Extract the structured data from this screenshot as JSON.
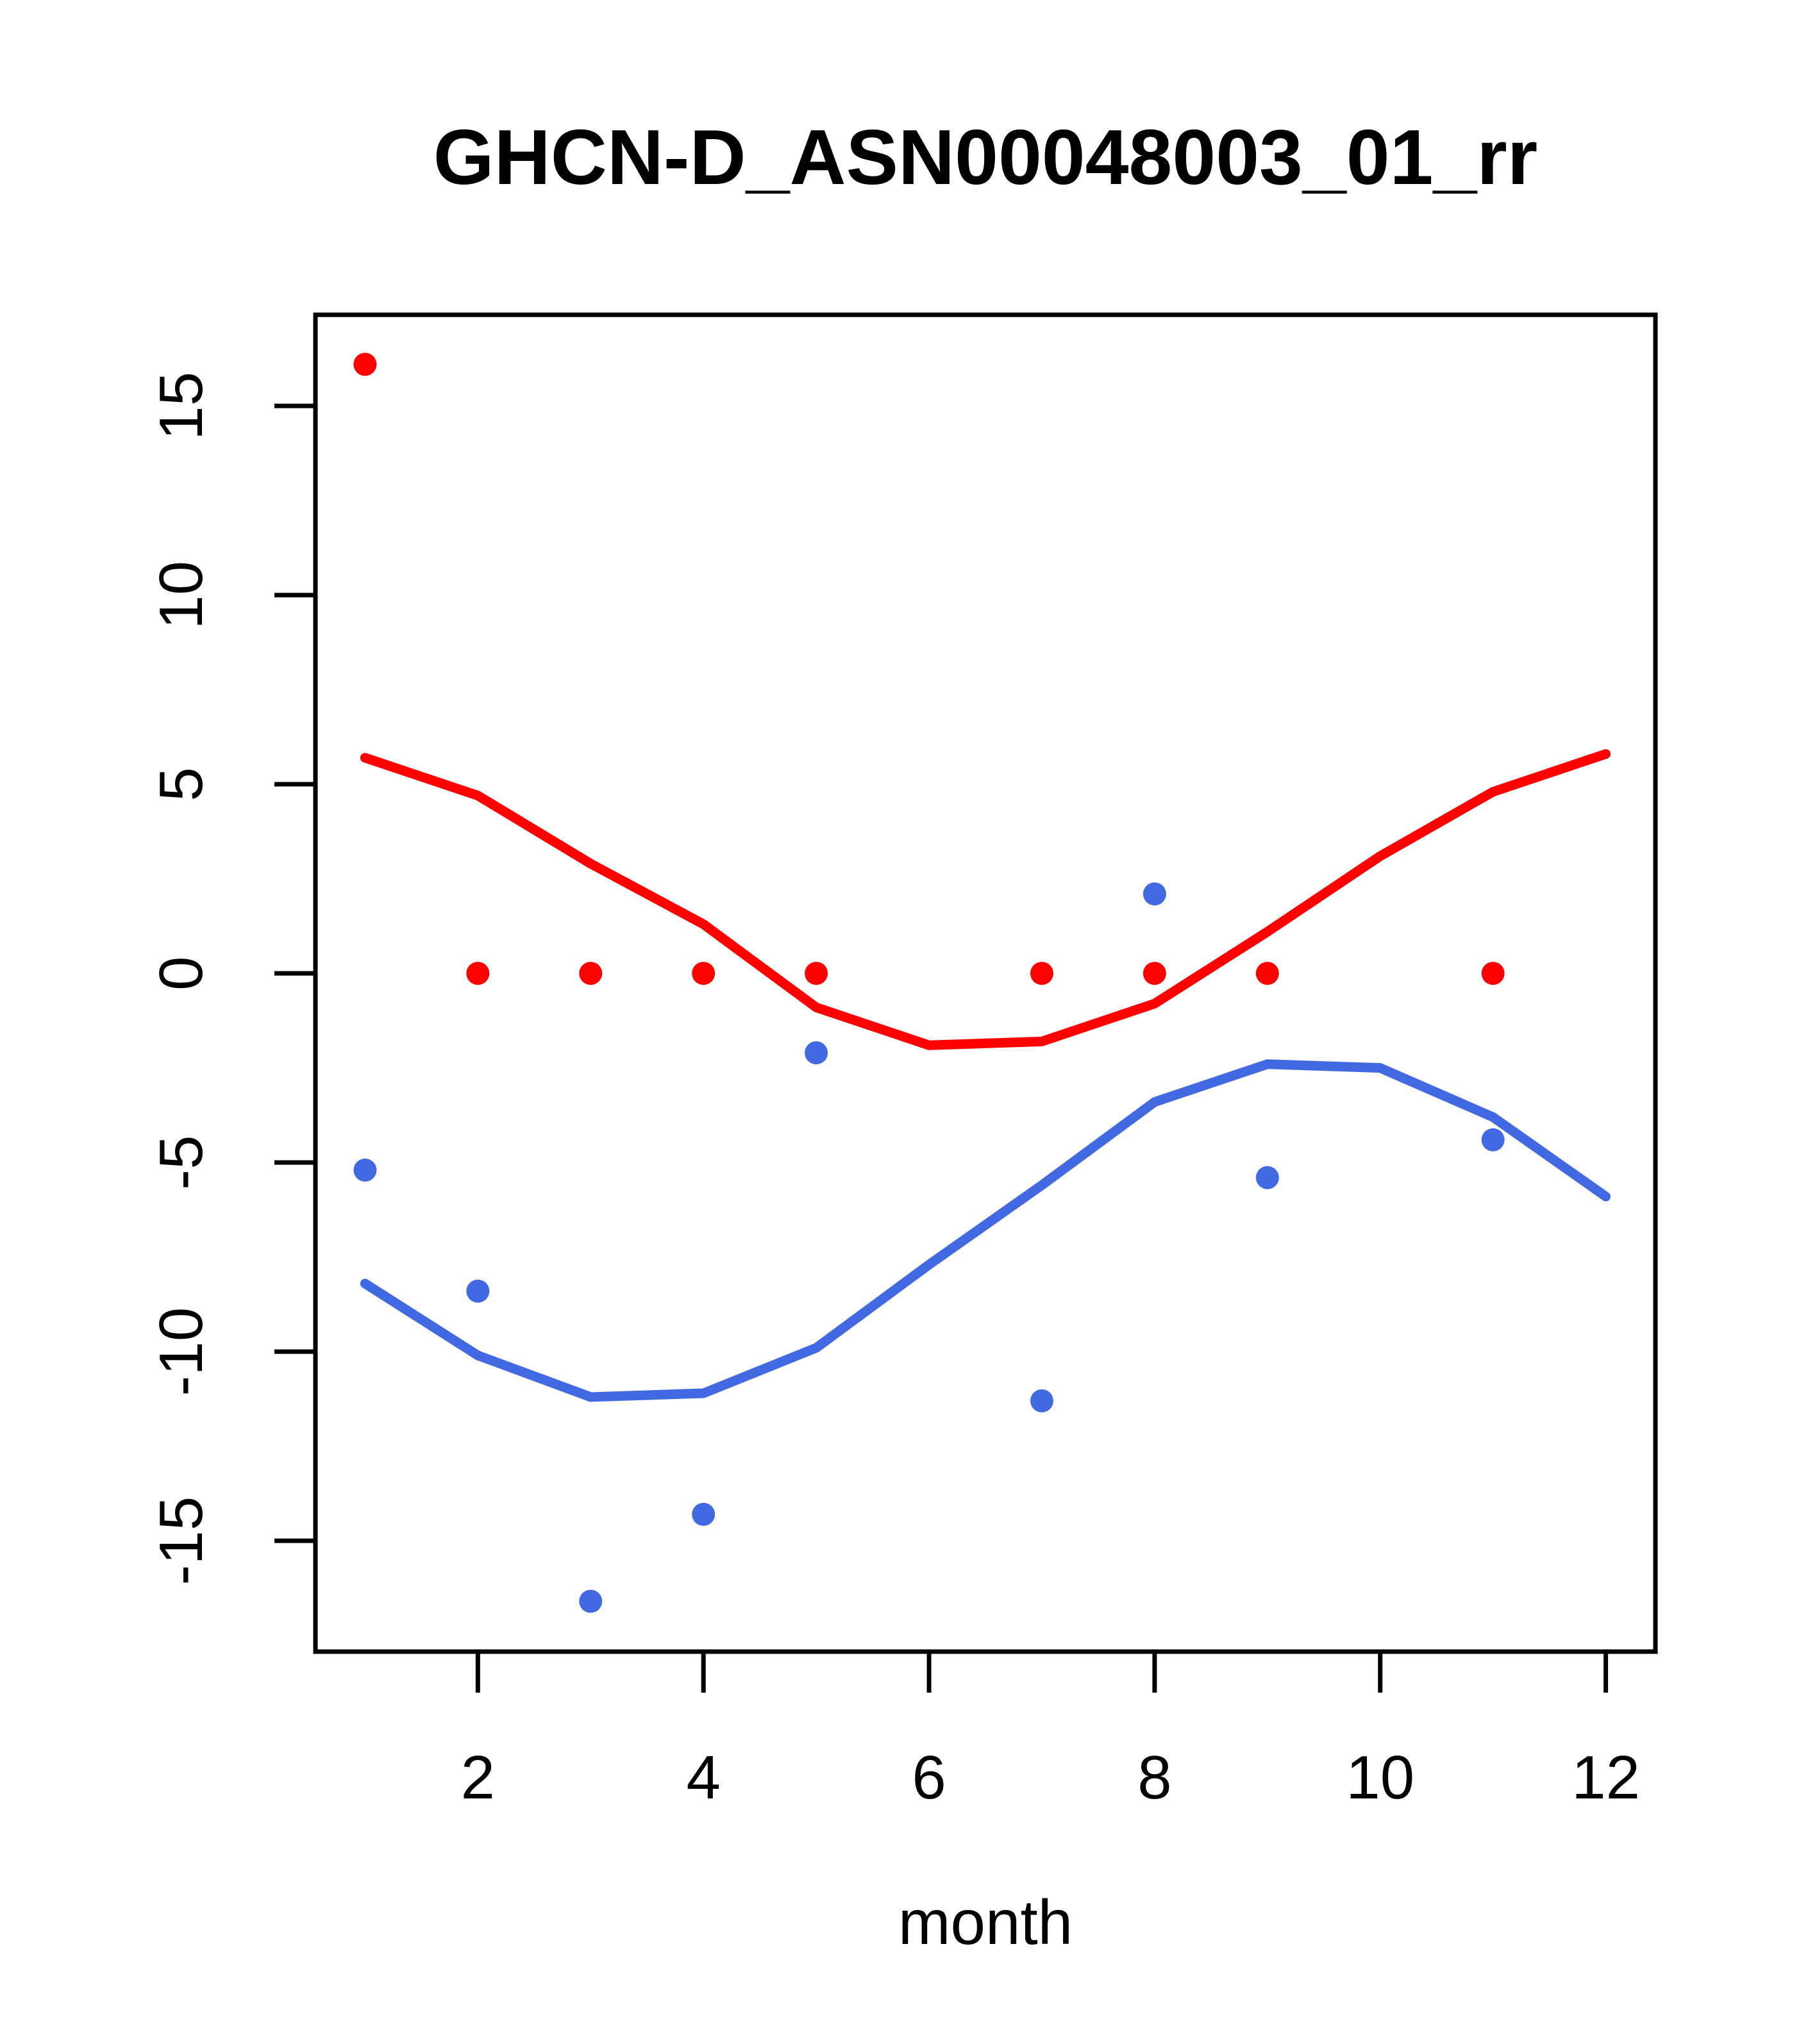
{
  "title": "GHCN-D_ASN00048003_01_rr",
  "xlabel": "month",
  "colors": {
    "red": "#ff0000",
    "blue": "#4169e1",
    "axis": "#000000",
    "background": "#ffffff"
  },
  "chart_data": {
    "type": "scatter",
    "title": "GHCN-D_ASN00048003_01_rr",
    "xlabel": "month",
    "ylabel": "",
    "grid": false,
    "legend": "none",
    "x_ticks": [
      2,
      4,
      6,
      8,
      10,
      12
    ],
    "y_ticks": [
      15,
      10,
      5,
      0,
      -5,
      -10,
      -15
    ],
    "xlim": [
      0.56,
      12.44
    ],
    "ylim": [
      -17.93,
      17.41
    ],
    "series": [
      {
        "name": "red-points",
        "type": "points",
        "color": "#ff0000",
        "x": [
          1,
          2,
          3,
          4,
          5,
          7,
          8,
          9,
          11
        ],
        "y": [
          16.1,
          0,
          0,
          0,
          0,
          0,
          0,
          0,
          0
        ]
      },
      {
        "name": "blue-points",
        "type": "points",
        "color": "#4169e1",
        "x": [
          1,
          2,
          3,
          4,
          5,
          7,
          8,
          9,
          11
        ],
        "y": [
          -5.2,
          -8.4,
          -16.6,
          -14.3,
          -2.1,
          -11.3,
          2.1,
          -5.4,
          -4.4
        ]
      },
      {
        "name": "red-fit-line",
        "type": "line",
        "color": "#ff0000",
        "x": [
          1,
          2,
          3,
          4,
          5,
          6,
          7,
          8,
          9,
          10,
          11,
          12
        ],
        "y": [
          5.7,
          4.7,
          2.9,
          1.3,
          -0.9,
          -1.9,
          -1.8,
          -0.8,
          1.1,
          3.1,
          4.8,
          5.8
        ]
      },
      {
        "name": "blue-fit-line",
        "type": "line",
        "color": "#4169e1",
        "x": [
          1,
          2,
          3,
          4,
          5,
          6,
          7,
          8,
          9,
          10,
          11,
          12
        ],
        "y": [
          -8.2,
          -10.1,
          -11.2,
          -11.1,
          -9.9,
          -7.7,
          -5.6,
          -3.4,
          -2.4,
          -2.5,
          -3.8,
          -5.9
        ]
      }
    ]
  }
}
